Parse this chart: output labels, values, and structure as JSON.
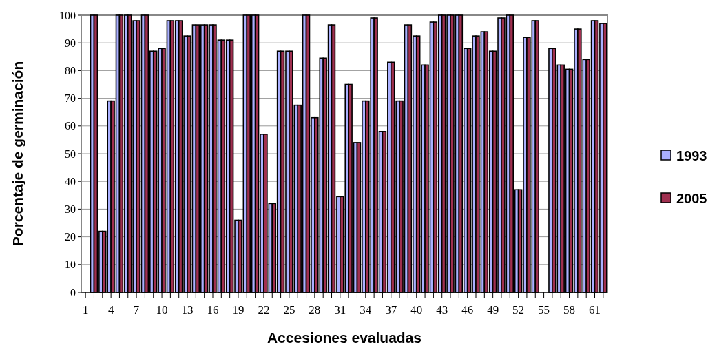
{
  "chart_data": {
    "type": "bar",
    "xlabel": "Accesiones evaluadas",
    "ylabel": "Porcentaje de germinación",
    "categories": [
      "1",
      null,
      null,
      "4",
      null,
      null,
      "7",
      null,
      null,
      "10",
      null,
      null,
      "13",
      null,
      null,
      "16",
      null,
      null,
      "19",
      null,
      null,
      "22",
      null,
      null,
      "25",
      null,
      null,
      "28",
      null,
      null,
      "31",
      null,
      null,
      "34",
      null,
      null,
      "37",
      null,
      null,
      "40",
      null,
      null,
      "43",
      null,
      null,
      "46",
      null,
      null,
      "49",
      null,
      null,
      "52",
      null,
      null,
      "55",
      null,
      null,
      "58",
      null,
      null,
      "61",
      null
    ],
    "series": [
      {
        "name": "1993",
        "color": "#aab0ff",
        "values": [
          0,
          100,
          22,
          69,
          100,
          100,
          98,
          100,
          87,
          88,
          98,
          98,
          92.5,
          96.5,
          96.5,
          96.5,
          91,
          91,
          26,
          100,
          100,
          57,
          32,
          87,
          87,
          67.5,
          100,
          63,
          84.5,
          96.5,
          34.5,
          75,
          54,
          69,
          99,
          58,
          83,
          69,
          96.5,
          92.5,
          82,
          97.5,
          100,
          100,
          100,
          88,
          92.5,
          94,
          87,
          99,
          100,
          37,
          92,
          98,
          0,
          88,
          82,
          80.5,
          95,
          84,
          98,
          97
        ]
      },
      {
        "name": "2005",
        "color": "#a03050",
        "values": [
          0,
          100,
          22,
          69,
          100,
          100,
          98,
          100,
          87,
          88,
          98,
          98,
          92.5,
          96.5,
          96.5,
          96.5,
          91,
          91,
          26,
          100,
          100,
          57,
          32,
          87,
          87,
          67.5,
          100,
          63,
          84.5,
          96.5,
          34.5,
          75,
          54,
          69,
          99,
          58,
          83,
          69,
          96.5,
          92.5,
          82,
          97.5,
          100,
          100,
          100,
          88,
          92.5,
          94,
          87,
          99,
          100,
          37,
          92,
          98,
          0,
          88,
          82,
          80.5,
          95,
          84,
          98,
          97
        ]
      }
    ],
    "ylim": [
      0,
      100
    ],
    "yticks": [
      0,
      10,
      20,
      30,
      40,
      50,
      60,
      70,
      80,
      90,
      100
    ],
    "grid": "y",
    "legend": "right"
  }
}
